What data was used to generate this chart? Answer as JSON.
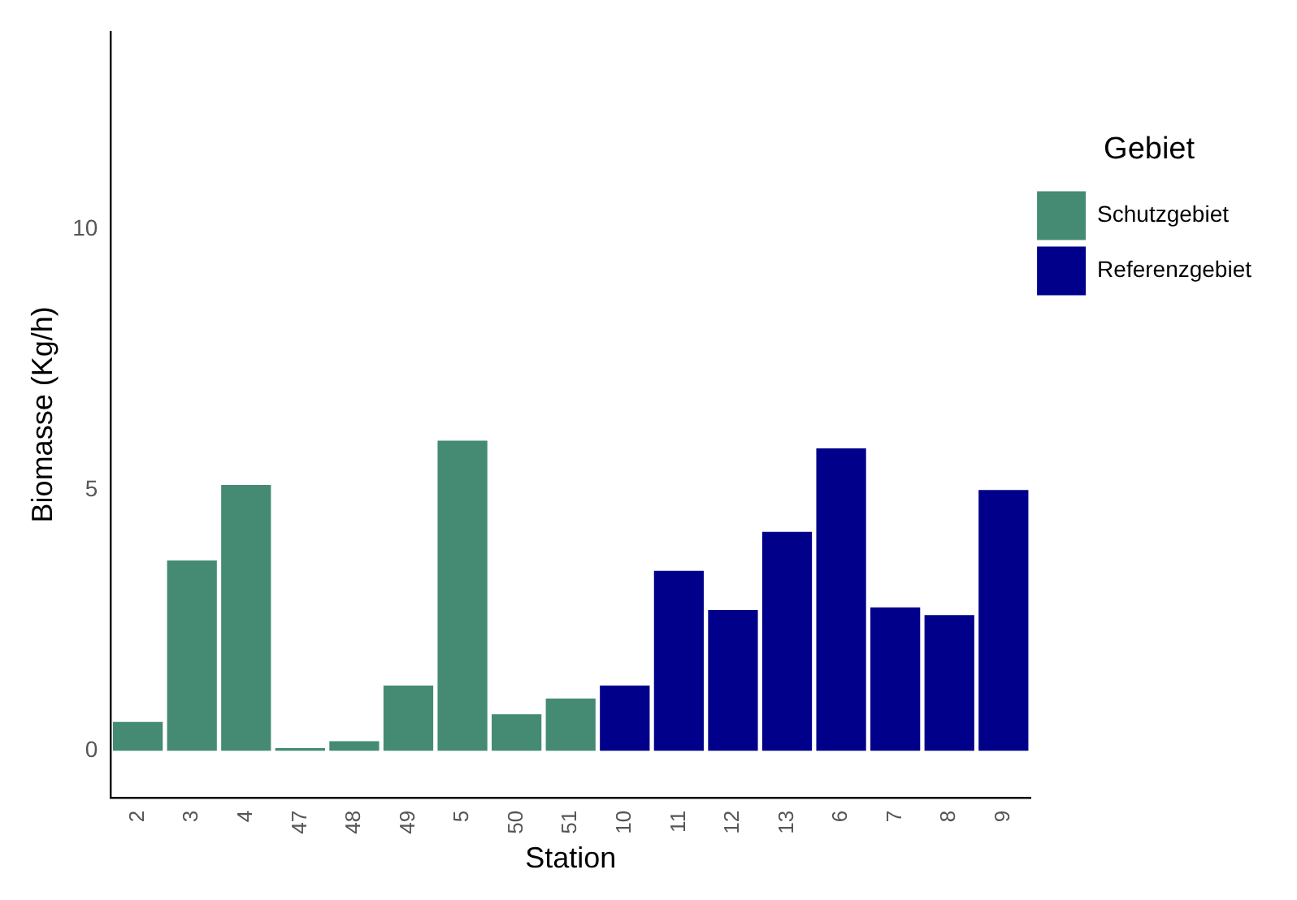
{
  "chart_data": {
    "type": "bar",
    "xlabel": "Station",
    "ylabel": "Biomasse (Kg/h)",
    "legend_title": "Gebiet",
    "legend": "right",
    "grid": false,
    "categories": [
      "2",
      "3",
      "4",
      "47",
      "48",
      "49",
      "5",
      "50",
      "51",
      "10",
      "11",
      "12",
      "13",
      "6",
      "7",
      "8",
      "9"
    ],
    "series": [
      {
        "name": "Schutzgebiet",
        "color": "#458b73",
        "values": [
          0.55,
          3.65,
          5.1,
          0.05,
          0.18,
          1.25,
          5.95,
          0.7,
          1.0,
          null,
          null,
          null,
          null,
          null,
          null,
          null,
          null
        ]
      },
      {
        "name": "Referenzgebiet",
        "color": "#00008b",
        "values": [
          null,
          null,
          null,
          null,
          null,
          null,
          null,
          null,
          null,
          1.25,
          3.45,
          2.7,
          4.2,
          5.8,
          2.75,
          2.6,
          5.0
        ]
      }
    ],
    "ylim": [
      -0.9,
      13.8
    ],
    "yticks": [
      0,
      5,
      10
    ]
  }
}
